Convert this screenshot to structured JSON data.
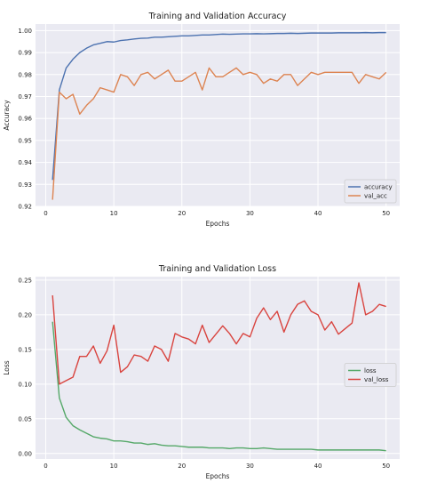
{
  "chart_data": [
    {
      "type": "line",
      "title": "Training and Validation Accuracy",
      "xlabel": "Epochs",
      "ylabel": "Accuracy",
      "xlim": [
        -1.5,
        52
      ],
      "ylim": [
        0.92,
        1.003
      ],
      "xticks": [
        0,
        10,
        20,
        30,
        40,
        50
      ],
      "yticks": [
        0.92,
        0.93,
        0.94,
        0.95,
        0.96,
        0.97,
        0.98,
        0.99,
        1.0
      ],
      "ytick_labels": [
        "0.92",
        "0.93",
        "0.94",
        "0.95",
        "0.96",
        "0.97",
        "0.98",
        "0.99",
        "1.00"
      ],
      "grid": true,
      "legend_position": "lower-right",
      "x": [
        1,
        2,
        3,
        4,
        5,
        6,
        7,
        8,
        9,
        10,
        11,
        12,
        13,
        14,
        15,
        16,
        17,
        18,
        19,
        20,
        21,
        22,
        23,
        24,
        25,
        26,
        27,
        28,
        29,
        30,
        31,
        32,
        33,
        34,
        35,
        36,
        37,
        38,
        39,
        40,
        41,
        42,
        43,
        44,
        45,
        46,
        47,
        48,
        49,
        50
      ],
      "series": [
        {
          "name": "accuracy",
          "color": "#4C72B0",
          "values": [
            0.932,
            0.973,
            0.983,
            0.987,
            0.99,
            0.992,
            0.9935,
            0.9942,
            0.995,
            0.9948,
            0.9955,
            0.9958,
            0.9962,
            0.9965,
            0.9966,
            0.997,
            0.997,
            0.9972,
            0.9974,
            0.9976,
            0.9976,
            0.9978,
            0.998,
            0.998,
            0.9982,
            0.9984,
            0.9983,
            0.9984,
            0.9985,
            0.9985,
            0.9986,
            0.9985,
            0.9986,
            0.9987,
            0.9987,
            0.9988,
            0.9987,
            0.9988,
            0.9989,
            0.9989,
            0.9989,
            0.9989,
            0.999,
            0.999,
            0.999,
            0.999,
            0.9991,
            0.999,
            0.9991,
            0.9991
          ]
        },
        {
          "name": "val_acc",
          "color": "#DD8452",
          "values": [
            0.923,
            0.972,
            0.969,
            0.971,
            0.962,
            0.966,
            0.969,
            0.974,
            0.973,
            0.972,
            0.98,
            0.979,
            0.975,
            0.98,
            0.981,
            0.978,
            0.98,
            0.982,
            0.977,
            0.977,
            0.979,
            0.981,
            0.973,
            0.983,
            0.979,
            0.979,
            0.981,
            0.983,
            0.98,
            0.981,
            0.98,
            0.976,
            0.978,
            0.977,
            0.98,
            0.98,
            0.975,
            0.978,
            0.981,
            0.98,
            0.981,
            0.981,
            0.981,
            0.981,
            0.981,
            0.976,
            0.98,
            0.979,
            0.978,
            0.981
          ]
        }
      ]
    },
    {
      "type": "line",
      "title": "Training and Validation Loss",
      "xlabel": "Epochs",
      "ylabel": "Loss",
      "xlim": [
        -1.5,
        52
      ],
      "ylim": [
        -0.008,
        0.255
      ],
      "xticks": [
        0,
        10,
        20,
        30,
        40,
        50
      ],
      "yticks": [
        0.0,
        0.05,
        0.1,
        0.15,
        0.2,
        0.25
      ],
      "ytick_labels": [
        "0.00",
        "0.05",
        "0.10",
        "0.15",
        "0.20",
        "0.25"
      ],
      "grid": true,
      "legend_position": "center-right",
      "x": [
        1,
        2,
        3,
        4,
        5,
        6,
        7,
        8,
        9,
        10,
        11,
        12,
        13,
        14,
        15,
        16,
        17,
        18,
        19,
        20,
        21,
        22,
        23,
        24,
        25,
        26,
        27,
        28,
        29,
        30,
        31,
        32,
        33,
        34,
        35,
        36,
        37,
        38,
        39,
        40,
        41,
        42,
        43,
        44,
        45,
        46,
        47,
        48,
        49,
        50
      ],
      "series": [
        {
          "name": "loss",
          "color": "#55A868",
          "values": [
            0.19,
            0.08,
            0.052,
            0.04,
            0.034,
            0.029,
            0.024,
            0.022,
            0.021,
            0.018,
            0.018,
            0.017,
            0.015,
            0.015,
            0.013,
            0.014,
            0.012,
            0.011,
            0.011,
            0.01,
            0.009,
            0.009,
            0.009,
            0.008,
            0.008,
            0.008,
            0.007,
            0.008,
            0.008,
            0.007,
            0.007,
            0.008,
            0.007,
            0.006,
            0.006,
            0.006,
            0.006,
            0.006,
            0.006,
            0.005,
            0.005,
            0.005,
            0.005,
            0.005,
            0.005,
            0.005,
            0.005,
            0.005,
            0.005,
            0.004
          ]
        },
        {
          "name": "val_loss",
          "color": "#D9443F",
          "values": [
            0.228,
            0.1,
            0.105,
            0.11,
            0.14,
            0.14,
            0.155,
            0.13,
            0.148,
            0.185,
            0.117,
            0.125,
            0.142,
            0.14,
            0.133,
            0.155,
            0.15,
            0.133,
            0.173,
            0.168,
            0.165,
            0.158,
            0.185,
            0.16,
            0.172,
            0.184,
            0.173,
            0.158,
            0.173,
            0.168,
            0.195,
            0.21,
            0.193,
            0.205,
            0.175,
            0.2,
            0.215,
            0.22,
            0.205,
            0.2,
            0.178,
            0.19,
            0.172,
            0.18,
            0.188,
            0.246,
            0.2,
            0.205,
            0.215,
            0.212
          ]
        }
      ]
    }
  ]
}
